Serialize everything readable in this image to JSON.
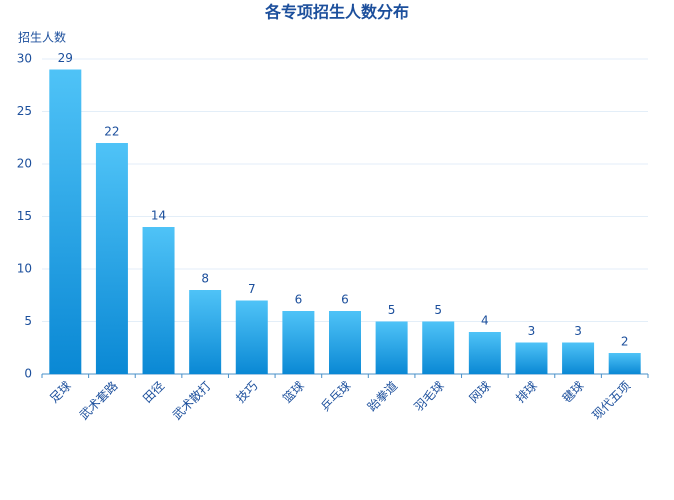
{
  "chart_data": {
    "type": "bar",
    "title": "各专项招生人数分布",
    "y_label": "招生人数",
    "categories": [
      "足球",
      "武术套路",
      "田径",
      "武术散打",
      "技巧",
      "篮球",
      "乒乓球",
      "跆拳道",
      "羽毛球",
      "网球",
      "排球",
      "毽球",
      "现代五项"
    ],
    "values": [
      29,
      22,
      14,
      8,
      7,
      6,
      6,
      5,
      5,
      4,
      3,
      3,
      2
    ],
    "gradient": [
      "#4fc3f7",
      "#0a88d4"
    ],
    "ylim": [
      0,
      30
    ],
    "yticks": [
      0,
      5,
      10,
      15,
      20,
      25,
      30
    ],
    "grid": true
  }
}
